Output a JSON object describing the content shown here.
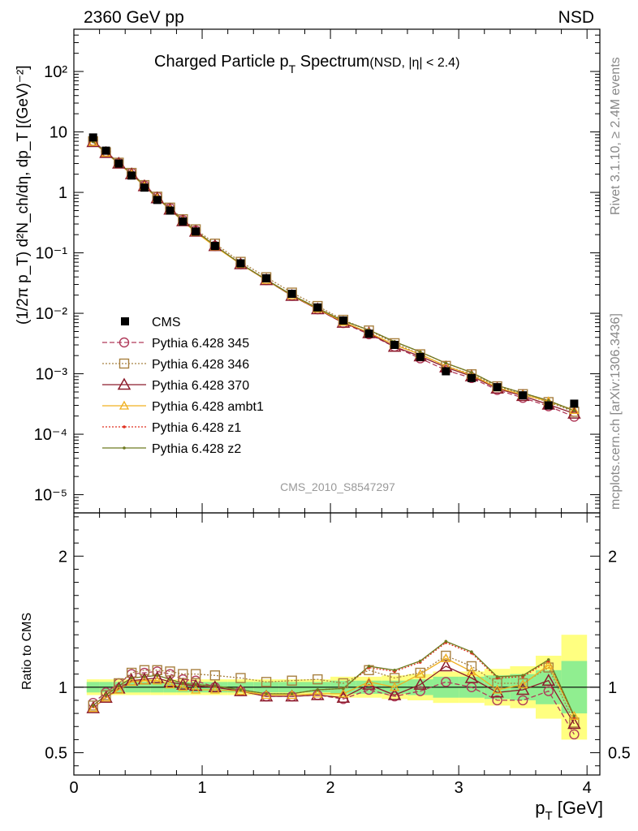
{
  "header": {
    "left": "2360 GeV pp",
    "right": "NSD"
  },
  "side_labels": {
    "top": "Rivet 3.1.10, ≥ 2.4M events",
    "bottom": "mcplots.cern.ch [arXiv:1306.3436]"
  },
  "chart_data": [
    {
      "type": "line",
      "title_main": "Charged Particle p",
      "title_sub": "T",
      "title_main2": " Spectrum",
      "title_extra": "(NSD, |η| < 2.4)",
      "ylabel": "(1/2π p_T) d²N_ch/dη, dp_T [(GeV)⁻²]",
      "yscale": "log",
      "ylim": [
        5e-06,
        500
      ],
      "xlim": [
        0,
        4.1
      ],
      "y_tick_labels": [
        "10⁻⁵",
        "10⁻⁴",
        "10⁻³",
        "10⁻²",
        "10⁻¹",
        "1",
        "10",
        "10²"
      ],
      "watermark": "CMS_2010_S8547297",
      "legend_position": "middle-left",
      "x": [
        0.15,
        0.25,
        0.35,
        0.45,
        0.55,
        0.65,
        0.75,
        0.85,
        0.95,
        1.1,
        1.3,
        1.5,
        1.7,
        1.9,
        2.1,
        2.3,
        2.5,
        2.7,
        2.9,
        3.1,
        3.3,
        3.5,
        3.7,
        3.9
      ],
      "data_series": {
        "name": "CMS",
        "values": [
          8.1,
          4.9,
          3.0,
          1.9,
          1.2,
          0.75,
          0.5,
          0.33,
          0.225,
          0.13,
          0.067,
          0.038,
          0.021,
          0.0125,
          0.0076,
          0.0046,
          0.003,
          0.0019,
          0.0011,
          0.00085,
          0.0006,
          0.00044,
          0.0003,
          0.00032
        ]
      },
      "series": [
        {
          "name": "Pythia 6.428 345",
          "color": "#b03a5a",
          "marker": "circle",
          "dash": "6,3",
          "values": [
            7.1,
            4.7,
            3.1,
            2.1,
            1.3,
            0.85,
            0.55,
            0.35,
            0.235,
            0.13,
            0.065,
            0.0355,
            0.0195,
            0.0117,
            0.0069,
            0.0045,
            0.0028,
            0.0018,
            0.00115,
            0.00085,
            0.00054,
            0.0004,
            0.00029,
            0.000195
          ]
        },
        {
          "name": "Pythia 6.428 346",
          "color": "#a88040",
          "marker": "square",
          "dash": "2,2",
          "values": [
            7.0,
            4.6,
            3.1,
            2.1,
            1.32,
            0.85,
            0.56,
            0.36,
            0.245,
            0.142,
            0.071,
            0.0395,
            0.022,
            0.0132,
            0.0078,
            0.0052,
            0.0032,
            0.0021,
            0.00135,
            0.00098,
            0.00062,
            0.00046,
            0.00034,
            0.000235
          ]
        },
        {
          "name": "Pythia 6.428 370",
          "color": "#8c1c2c",
          "marker": "triangle",
          "dash": "",
          "values": [
            6.8,
            4.5,
            3.0,
            2.0,
            1.27,
            0.8,
            0.52,
            0.335,
            0.225,
            0.13,
            0.065,
            0.0355,
            0.0195,
            0.0117,
            0.007,
            0.0047,
            0.0028,
            0.00195,
            0.00128,
            0.00091,
            0.00057,
            0.00043,
            0.00031,
            0.00022
          ]
        },
        {
          "name": "Pythia 6.428 ambt1",
          "color": "#f0b020",
          "marker": "triangle-small",
          "dash": "",
          "values": [
            6.8,
            4.5,
            3.0,
            2.0,
            1.27,
            0.8,
            0.52,
            0.335,
            0.22,
            0.127,
            0.065,
            0.0355,
            0.0197,
            0.0119,
            0.0072,
            0.0048,
            0.003,
            0.0021,
            0.00135,
            0.00095,
            0.00059,
            0.00045,
            0.00035,
            0.00025
          ]
        },
        {
          "name": "Pythia 6.428 z1",
          "color": "#e03020",
          "marker": "dot",
          "dash": "2,2",
          "values": [
            6.9,
            4.6,
            3.05,
            2.05,
            1.29,
            0.82,
            0.53,
            0.34,
            0.23,
            0.132,
            0.066,
            0.036,
            0.02,
            0.0122,
            0.0075,
            0.0053,
            0.0034,
            0.0023,
            0.0015,
            0.00105,
            0.00064,
            0.00048,
            0.00036,
            0.000245
          ]
        },
        {
          "name": "Pythia 6.428 z2",
          "color": "#6e7a20",
          "marker": "dot",
          "dash": "",
          "values": [
            6.9,
            4.6,
            3.05,
            2.05,
            1.29,
            0.82,
            0.53,
            0.34,
            0.23,
            0.132,
            0.066,
            0.036,
            0.02,
            0.0122,
            0.0075,
            0.0053,
            0.0034,
            0.0023,
            0.0015,
            0.00105,
            0.00064,
            0.00048,
            0.00036,
            0.000245
          ]
        }
      ]
    },
    {
      "type": "line",
      "ylabel": "Ratio to CMS",
      "xlabel_main": "p",
      "xlabel_sub": "T",
      "xlabel_unit": " [GeV]",
      "xlim": [
        0,
        4.1
      ],
      "ylim": [
        0.33,
        2.33
      ],
      "x_ticks": [
        0,
        1,
        2,
        3,
        4
      ],
      "x_tick_labels": [
        "0",
        "1",
        "2",
        "3",
        "4"
      ],
      "y_ticks": [
        0.5,
        1,
        2
      ],
      "y_tick_labels": [
        "0.5",
        "1",
        "2"
      ],
      "band_color_inner": "#90ee90",
      "band_color_outer": "#ffff80",
      "bands": {
        "x_edges": [
          0.1,
          0.2,
          0.3,
          0.4,
          0.5,
          0.6,
          0.7,
          0.8,
          0.9,
          1.0,
          1.2,
          1.4,
          1.6,
          1.8,
          2.0,
          2.2,
          2.4,
          2.6,
          2.8,
          3.0,
          3.2,
          3.4,
          3.6,
          3.8,
          4.0
        ],
        "inner": [
          0.04,
          0.04,
          0.04,
          0.04,
          0.04,
          0.04,
          0.04,
          0.04,
          0.04,
          0.04,
          0.04,
          0.04,
          0.04,
          0.04,
          0.05,
          0.05,
          0.05,
          0.06,
          0.08,
          0.08,
          0.09,
          0.1,
          0.13,
          0.2
        ],
        "outer": [
          0.06,
          0.06,
          0.06,
          0.06,
          0.06,
          0.06,
          0.06,
          0.06,
          0.06,
          0.06,
          0.06,
          0.06,
          0.06,
          0.06,
          0.08,
          0.08,
          0.09,
          0.1,
          0.12,
          0.12,
          0.14,
          0.16,
          0.24,
          0.4
        ]
      },
      "series": [
        {
          "name": "Pythia 6.428 345",
          "values": [
            0.88,
            0.96,
            1.03,
            1.1,
            1.11,
            1.12,
            1.1,
            1.06,
            1.05,
            1.0,
            0.97,
            0.93,
            0.93,
            0.94,
            0.91,
            0.98,
            0.93,
            0.97,
            1.04,
            1.0,
            0.9,
            0.9,
            0.97,
            0.64
          ]
        },
        {
          "name": "Pythia 6.428 346",
          "values": [
            0.86,
            0.94,
            1.03,
            1.11,
            1.13,
            1.13,
            1.12,
            1.1,
            1.1,
            1.09,
            1.07,
            1.04,
            1.05,
            1.06,
            1.03,
            1.13,
            1.07,
            1.11,
            1.24,
            1.16,
            1.03,
            1.03,
            1.15,
            0.73
          ]
        },
        {
          "name": "Pythia 6.428 370",
          "values": [
            0.84,
            0.92,
            0.99,
            1.05,
            1.06,
            1.07,
            1.04,
            1.02,
            1.01,
            1.0,
            0.97,
            0.93,
            0.93,
            0.94,
            0.92,
            1.02,
            0.94,
            1.02,
            1.16,
            1.07,
            0.96,
            0.98,
            1.05,
            0.72
          ]
        },
        {
          "name": "Pythia 6.428 ambt1",
          "values": [
            0.84,
            0.92,
            0.98,
            1.04,
            1.05,
            1.05,
            1.02,
            1.0,
            0.98,
            0.98,
            0.97,
            0.94,
            0.94,
            0.95,
            0.95,
            1.04,
            1.0,
            1.1,
            1.22,
            1.12,
            0.98,
            1.02,
            1.17,
            0.78
          ]
        },
        {
          "name": "Pythia 6.428 z1",
          "values": [
            0.86,
            0.94,
            1.01,
            1.07,
            1.08,
            1.09,
            1.06,
            1.03,
            1.02,
            1.01,
            0.98,
            0.95,
            0.95,
            0.98,
            0.99,
            1.15,
            1.12,
            1.19,
            1.34,
            1.26,
            1.07,
            1.08,
            1.2,
            0.77
          ]
        },
        {
          "name": "Pythia 6.428 z2",
          "values": [
            0.86,
            0.94,
            1.01,
            1.07,
            1.08,
            1.09,
            1.06,
            1.03,
            1.02,
            1.01,
            0.98,
            0.95,
            0.95,
            0.98,
            0.99,
            1.16,
            1.13,
            1.2,
            1.35,
            1.27,
            1.08,
            1.09,
            1.21,
            0.78
          ]
        }
      ]
    }
  ]
}
